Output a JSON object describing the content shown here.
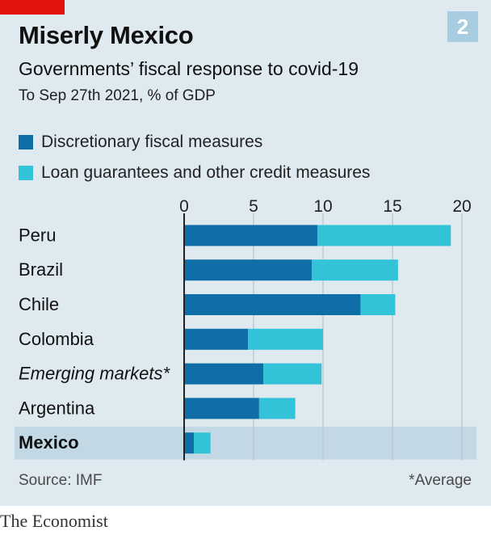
{
  "header": {
    "chart_number": "2",
    "title": "Miserly Mexico",
    "subtitle": "Governments’ fiscal response to covid-19",
    "subsubtitle": "To Sep 27th 2021, % of GDP"
  },
  "legend": [
    {
      "label": "Discretionary fiscal measures",
      "color": "#0f6ea8"
    },
    {
      "label": "Loan guarantees and other credit measures",
      "color": "#33c3d8"
    }
  ],
  "footer": {
    "source": "Source: IMF",
    "note": "*Average"
  },
  "brand": "The Economist",
  "colors": {
    "highlight_band": "#c2d8e5",
    "gridline": "#b7c3cc",
    "axis": "#222222"
  },
  "chart_data": {
    "type": "bar",
    "orientation": "horizontal",
    "stacked": true,
    "title": "Miserly Mexico",
    "subtitle": "Governments’ fiscal response to covid-19",
    "xlabel": "",
    "ylabel": "",
    "xlim": [
      0,
      20
    ],
    "xticks": [
      0,
      5,
      10,
      15,
      20
    ],
    "x_axis_position": "top",
    "grid": true,
    "legend_position": "top-left",
    "categories": [
      "Peru",
      "Brazil",
      "Chile",
      "Colombia",
      "Emerging markets*",
      "Argentina",
      "Mexico"
    ],
    "italic_categories": [
      "Emerging markets*"
    ],
    "highlight_category": "Mexico",
    "series": [
      {
        "name": "Discretionary fiscal measures",
        "values": [
          9.6,
          9.2,
          12.7,
          4.6,
          5.7,
          5.4,
          0.7
        ]
      },
      {
        "name": "Loan guarantees and other credit measures",
        "values": [
          9.6,
          6.2,
          2.5,
          5.4,
          4.2,
          2.6,
          1.2
        ]
      }
    ]
  }
}
